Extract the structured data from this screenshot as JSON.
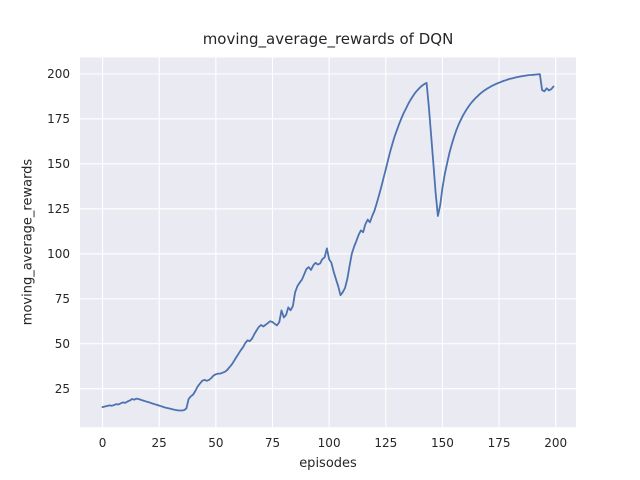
{
  "chart_data": {
    "type": "line",
    "title": "moving_average_rewards of DQN",
    "xlabel": "episodes",
    "ylabel": "moving_average_rewards",
    "x_ticks": [
      0,
      25,
      50,
      75,
      100,
      125,
      150,
      175,
      200
    ],
    "y_ticks": [
      25,
      50,
      75,
      100,
      125,
      150,
      175,
      200
    ],
    "xlim": [
      -9.95,
      208.95
    ],
    "ylim": [
      3.6,
      209.1
    ],
    "grid": true,
    "legend_position": "none",
    "style": "seaborn-darkgrid",
    "colors": {
      "line": "#4c72b0",
      "plot_background": "#eaeaf2",
      "grid": "#ffffff",
      "figure_background": "#ffffff",
      "text": "#262626"
    },
    "series": [
      {
        "name": "moving_average_rewards",
        "x_start": 0,
        "x_step": 1,
        "values": [
          14.8,
          15.1,
          15.4,
          15.7,
          15.5,
          15.9,
          16.4,
          16.2,
          16.9,
          17.4,
          17.1,
          17.9,
          18.4,
          19.3,
          18.9,
          19.5,
          19.2,
          18.8,
          18.4,
          18.0,
          17.6,
          17.2,
          16.8,
          16.4,
          16.0,
          15.6,
          15.2,
          14.8,
          14.4,
          14.1,
          13.8,
          13.5,
          13.2,
          13.0,
          12.9,
          12.9,
          13.1,
          14.0,
          19.2,
          20.8,
          21.8,
          23.8,
          26.3,
          27.9,
          29.4,
          29.9,
          29.4,
          29.9,
          30.9,
          32.4,
          33.0,
          33.4,
          33.4,
          33.9,
          34.4,
          35.4,
          36.9,
          38.4,
          40.4,
          42.4,
          44.4,
          46.4,
          48.0,
          50.4,
          51.9,
          51.4,
          52.9,
          55.4,
          57.4,
          59.4,
          60.4,
          59.6,
          60.6,
          61.6,
          62.5,
          62.0,
          61.0,
          60.2,
          62.0,
          68.5,
          64.6,
          66.0,
          70.2,
          68.6,
          71.0,
          78.6,
          82.0,
          84.0,
          85.6,
          88.6,
          91.6,
          92.6,
          91.0,
          93.6,
          95.0,
          94.0,
          94.6,
          97.0,
          98.0,
          103.0,
          97.0,
          95.0,
          90.0,
          86.0,
          82.0,
          77.0,
          78.6,
          81.0,
          86.0,
          93.0,
          100.0,
          104.0,
          107.0,
          110.5,
          113.0,
          112.0,
          116.5,
          119.0,
          117.5,
          121.0,
          124.0,
          128.0,
          132.5,
          137.0,
          142.0,
          147.0,
          152.0,
          157.0,
          161.5,
          165.5,
          169.0,
          172.5,
          175.5,
          178.5,
          181.0,
          183.5,
          185.7,
          187.7,
          189.5,
          191.0,
          192.3,
          193.4,
          194.3,
          195.0,
          182.0,
          166.0,
          150.0,
          134.0,
          121.0,
          127.0,
          136.5,
          144.0,
          150.0,
          155.5,
          160.3,
          164.5,
          168.2,
          171.4,
          174.2,
          176.7,
          178.9,
          180.9,
          182.7,
          184.3,
          185.7,
          187.0,
          188.2,
          189.3,
          190.3,
          191.2,
          192.0,
          192.7,
          193.4,
          194.0,
          194.6,
          195.1,
          195.6,
          196.1,
          196.5,
          196.9,
          197.3,
          197.6,
          197.9,
          198.2,
          198.5,
          198.7,
          198.9,
          199.1,
          199.3,
          199.4,
          199.5,
          199.6,
          199.7,
          199.8,
          191.0,
          190.3,
          192.0,
          190.8,
          191.5,
          193.0
        ]
      }
    ]
  }
}
